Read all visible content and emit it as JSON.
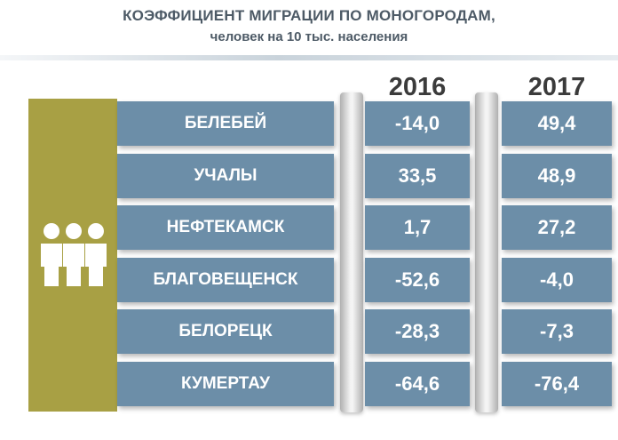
{
  "header": {
    "title": "КОЭФФИЦИЕНТ МИГРАЦИИ ПО МОНОГОРОДАМ,",
    "subtitle": "человек на 10 тыс. населения"
  },
  "colors": {
    "row_fill": "#6c8ea8",
    "side_fill": "#a8a044",
    "icon": "#ffffff"
  },
  "icon": "people-group-icon",
  "chart_data": {
    "type": "table",
    "columns": [
      "2016",
      "2017"
    ],
    "rows": [
      {
        "city": "БЕЛЕБЕЙ",
        "v2016": -14.0,
        "v2017": 49.4,
        "t2016": "-14,0",
        "t2017": "49,4"
      },
      {
        "city": "УЧАЛЫ",
        "v2016": 33.5,
        "v2017": 48.9,
        "t2016": "33,5",
        "t2017": "48,9"
      },
      {
        "city": "НЕФТЕКАМСК",
        "v2016": 1.7,
        "v2017": 27.2,
        "t2016": "1,7",
        "t2017": "27,2"
      },
      {
        "city": "БЛАГОВЕЩЕНСК",
        "v2016": -52.6,
        "v2017": -4.0,
        "t2016": "-52,6",
        "t2017": "-4,0"
      },
      {
        "city": "БЕЛОРЕЦК",
        "v2016": -28.3,
        "v2017": -7.3,
        "t2016": "-28,3",
        "t2017": "-7,3"
      },
      {
        "city": "КУМЕРТАУ",
        "v2016": -64.6,
        "v2017": -76.4,
        "t2016": "-64,6",
        "t2017": "-76,4"
      }
    ]
  }
}
